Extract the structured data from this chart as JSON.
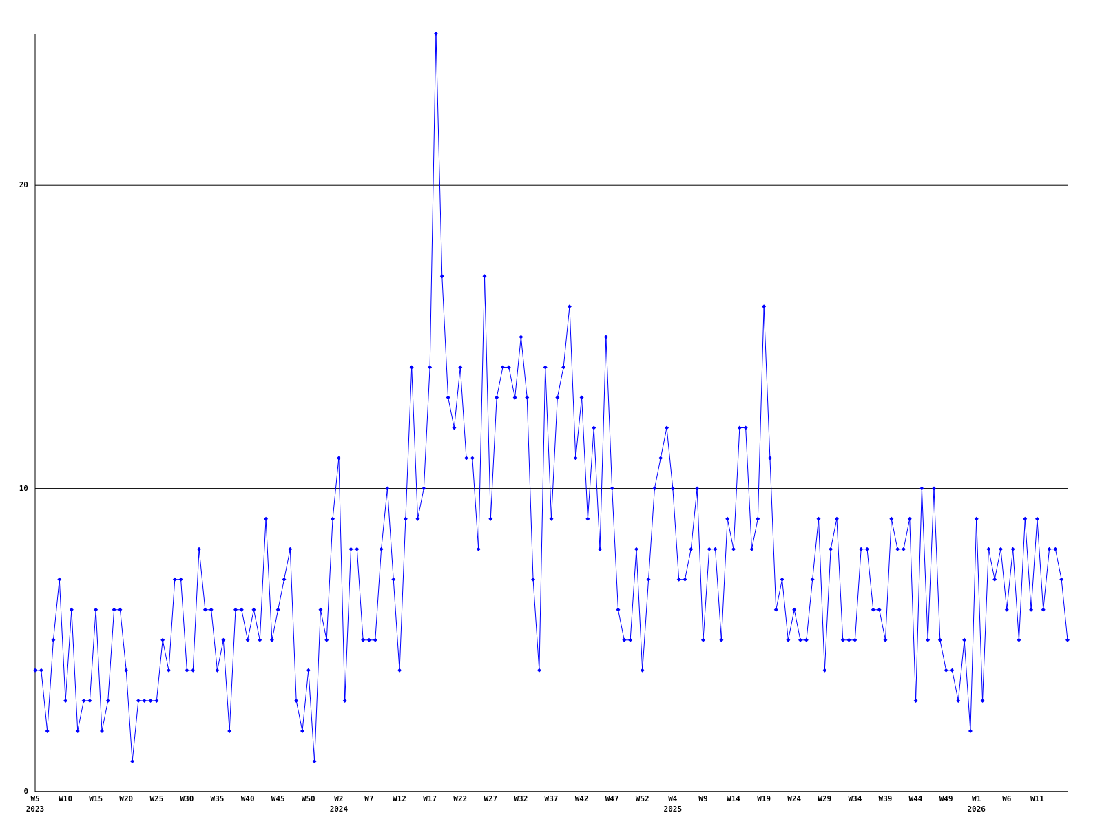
{
  "chart_data": {
    "type": "line",
    "categories": [
      "W5\n2023",
      null,
      null,
      null,
      null,
      "W10",
      null,
      null,
      null,
      null,
      "W15",
      null,
      null,
      null,
      null,
      "W20",
      null,
      null,
      null,
      null,
      "W25",
      null,
      null,
      null,
      null,
      "W30",
      null,
      null,
      null,
      null,
      "W35",
      null,
      null,
      null,
      null,
      "W40",
      null,
      null,
      null,
      null,
      "W45",
      null,
      null,
      null,
      null,
      "W50",
      null,
      null,
      null,
      null,
      "W2\n2024",
      null,
      null,
      null,
      null,
      "W7",
      null,
      null,
      null,
      null,
      "W12",
      null,
      null,
      null,
      null,
      "W17",
      null,
      null,
      null,
      null,
      "W22",
      null,
      null,
      null,
      null,
      "W27",
      null,
      null,
      null,
      null,
      "W32",
      null,
      null,
      null,
      null,
      "W37",
      null,
      null,
      null,
      null,
      "W42",
      null,
      null,
      null,
      null,
      "W47",
      null,
      null,
      null,
      null,
      "W52",
      null,
      null,
      null,
      null,
      "W4\n2025",
      null,
      null,
      null,
      null,
      "W9",
      null,
      null,
      null,
      null,
      "W14",
      null,
      null,
      null,
      null,
      "W19",
      null,
      null,
      null,
      null,
      "W24",
      null,
      null,
      null,
      null,
      "W29",
      null,
      null,
      null,
      null,
      "W34",
      null,
      null,
      null,
      null,
      "W39",
      null,
      null,
      null,
      null,
      "W44",
      null,
      null,
      null,
      null,
      "W49",
      null,
      null,
      null,
      null,
      "W1\n2026",
      null,
      null,
      null,
      null,
      "W6",
      null,
      null,
      null,
      null,
      "W11",
      null,
      null,
      null,
      null,
      null
    ],
    "series": [
      {
        "color": "#0000ff",
        "values": [
          4,
          4,
          2,
          5,
          7,
          3,
          6,
          2,
          3,
          3,
          6,
          2,
          3,
          6,
          6,
          4,
          1,
          3,
          3,
          3,
          3,
          5,
          4,
          7,
          7,
          4,
          4,
          8,
          6,
          6,
          4,
          5,
          2,
          6,
          6,
          5,
          6,
          5,
          9,
          5,
          6,
          7,
          8,
          3,
          2,
          4,
          1,
          6,
          5,
          9,
          11,
          3,
          8,
          8,
          5,
          5,
          5,
          8,
          10,
          7,
          4,
          9,
          14,
          9,
          10,
          14,
          25,
          17,
          13,
          12,
          14,
          11,
          11,
          8,
          17,
          9,
          13,
          14,
          14,
          13,
          15,
          13,
          7,
          4,
          14,
          9,
          13,
          14,
          16,
          11,
          13,
          9,
          12,
          8,
          15,
          10,
          6,
          5,
          5,
          8,
          4,
          7,
          10,
          11,
          12,
          10,
          7,
          7,
          8,
          10,
          5,
          8,
          8,
          5,
          9,
          8,
          12,
          12,
          8,
          9,
          16,
          11,
          6,
          7,
          5,
          6,
          5,
          5,
          7,
          9,
          4,
          8,
          9,
          5,
          5,
          5,
          8,
          8,
          6,
          6,
          5,
          9,
          8,
          8,
          9,
          3,
          10,
          5,
          10,
          5,
          4,
          4,
          3,
          5,
          2,
          9,
          3,
          8,
          7,
          8,
          6,
          8,
          5,
          9,
          6,
          9,
          6,
          8,
          8,
          7,
          5
        ]
      }
    ],
    "ylim": [
      0,
      25
    ],
    "yticks": [
      0,
      10,
      20
    ],
    "grid": "y",
    "marker": "diamond"
  }
}
